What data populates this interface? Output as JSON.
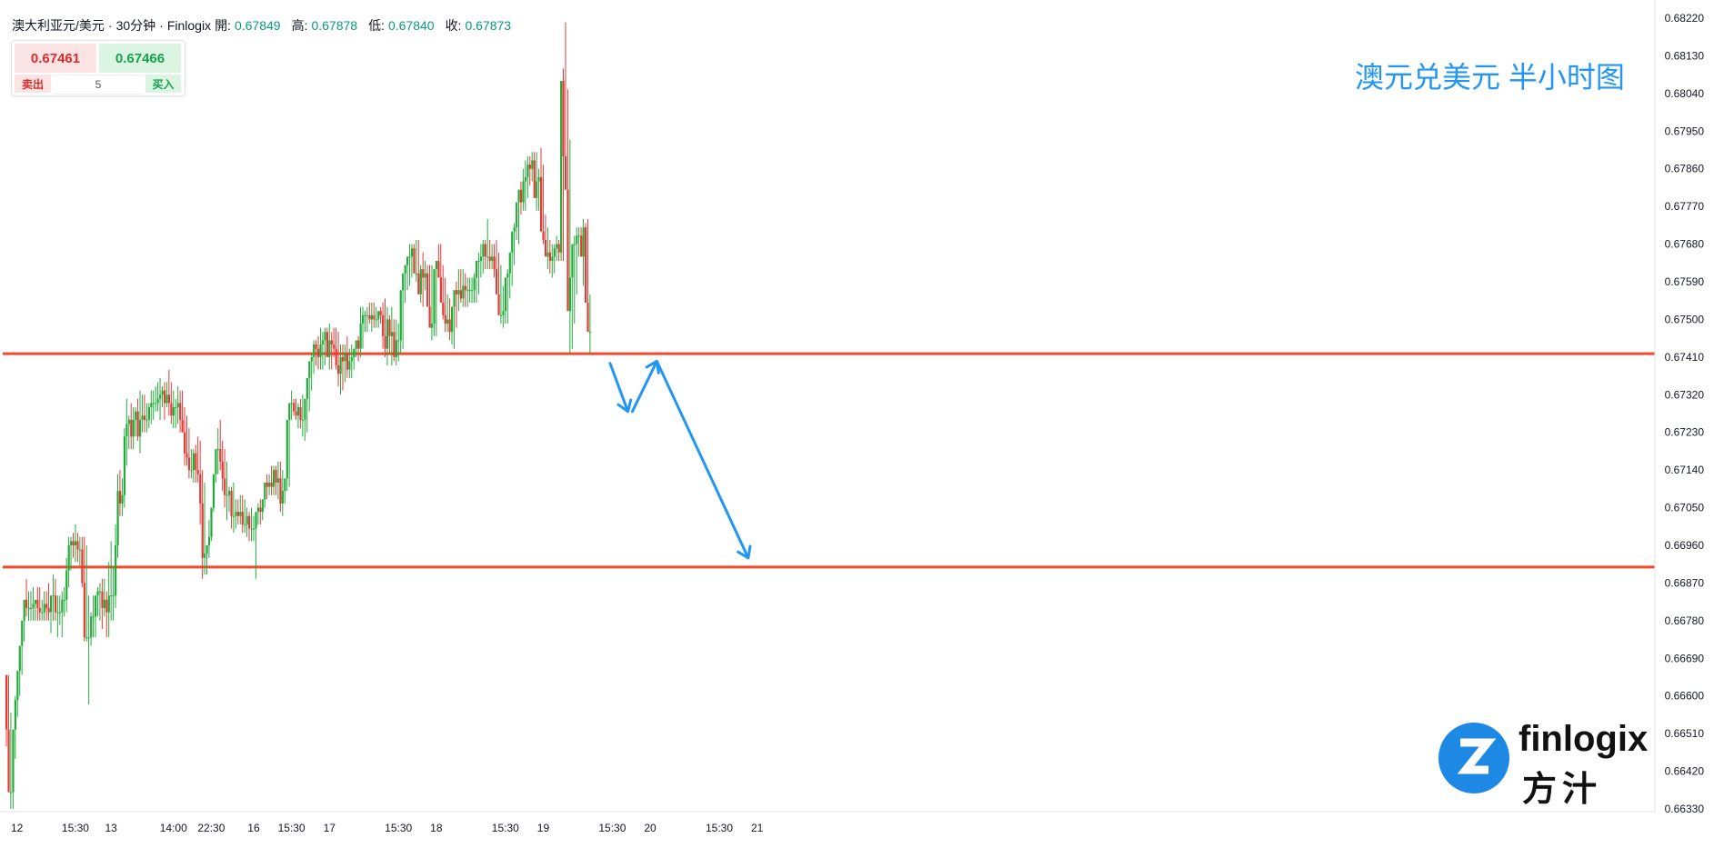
{
  "header": {
    "symbol": "澳大利亚元/美元",
    "sep1": "·",
    "interval": "30分钟",
    "sep2": "·",
    "source": "Finlogix",
    "open_label": "開:",
    "open_value": "0.67849",
    "high_label": "高:",
    "high_value": "0.67878",
    "low_label": "低:",
    "low_value": "0.67840",
    "close_label": "收:",
    "close_value": "0.67873"
  },
  "ticket": {
    "sell_price": "0.67461",
    "buy_price": "0.67466",
    "sell_label": "卖出",
    "buy_label": "买入",
    "quantity": "5"
  },
  "annotation": {
    "text": "澳元兑美元 半小时图"
  },
  "brand": {
    "logo_en_1": "fin",
    "logo_en_2": "logix",
    "logo_cn": "方汁"
  },
  "colors": {
    "up": "#22ab3a",
    "down": "#e53935",
    "level_line": "#f0492c",
    "arrow": "#2196f3",
    "brand": "#1e88e5"
  },
  "chart_data": {
    "type": "candlestick",
    "symbol": "澳大利亚元/美元",
    "interval": "30分钟",
    "ylim": [
      0.6629,
      0.6826
    ],
    "y_ticks": [
      "0.68220",
      "0.68130",
      "0.68040",
      "0.67950",
      "0.67860",
      "0.67770",
      "0.67680",
      "0.67590",
      "0.67500",
      "0.67410",
      "0.67320",
      "0.67230",
      "0.67140",
      "0.67050",
      "0.66960",
      "0.66870",
      "0.66780",
      "0.66690",
      "0.66600",
      "0.66510",
      "0.66420",
      "0.66330"
    ],
    "x_ticks": [
      {
        "label": "12",
        "index": 0
      },
      {
        "label": "15:30",
        "index": 31
      },
      {
        "label": "13",
        "index": 47
      },
      {
        "label": "14:00",
        "index": 75
      },
      {
        "label": "22:30",
        "index": 92
      },
      {
        "label": "16",
        "index": 111
      },
      {
        "label": "15:30",
        "index": 128
      },
      {
        "label": "17",
        "index": 145
      },
      {
        "label": "15:30",
        "index": 176
      },
      {
        "label": "18",
        "index": 193
      },
      {
        "label": "15:30",
        "index": 224
      },
      {
        "label": "19",
        "index": 241
      },
      {
        "label": "15:30",
        "index": 272
      },
      {
        "label": "20",
        "index": 289
      },
      {
        "label": "15:30",
        "index": 320
      },
      {
        "label": "21",
        "index": 337
      }
    ],
    "levels": [
      0.67418,
      0.66908
    ],
    "projection_path": [
      {
        "index": 271,
        "price": 0.67395
      },
      {
        "index": 279,
        "price": 0.6728
      },
      {
        "index": 281,
        "price": 0.6728
      },
      {
        "index": 292,
        "price": 0.674
      },
      {
        "index": 333,
        "price": 0.6693
      }
    ],
    "ohlc_open": [
      0.6665,
      0.6652,
      0.6637,
      0.6637,
      0.6652,
      0.6659,
      0.6666,
      0.6672,
      0.6678,
      0.6683,
      0.6681,
      0.6681,
      0.6681,
      0.6682,
      0.6683,
      0.6681,
      0.668,
      0.668,
      0.6682,
      0.6681,
      0.668,
      0.6684,
      0.6684,
      0.668,
      0.668,
      0.668,
      0.6683,
      0.6683,
      0.669,
      0.6696,
      0.6697,
      0.6696,
      0.6697,
      0.6695,
      0.6695,
      0.6687,
      0.6674,
      0.6674,
      0.6674,
      0.6679,
      0.6679,
      0.6684,
      0.6685,
      0.6685,
      0.6681,
      0.6683,
      0.668,
      0.6684,
      0.6684,
      0.6684,
      0.6696,
      0.6709,
      0.6706,
      0.6708,
      0.6722,
      0.6725,
      0.6726,
      0.6722,
      0.6726,
      0.6728,
      0.6722,
      0.6726,
      0.6727,
      0.6726,
      0.6726,
      0.6729,
      0.673,
      0.673,
      0.673,
      0.6731,
      0.6732,
      0.6733,
      0.673,
      0.6732,
      0.673,
      0.6727,
      0.6729,
      0.6729,
      0.673,
      0.6726,
      0.6723,
      0.6718,
      0.6717,
      0.6714,
      0.6714,
      0.6718,
      0.6714,
      0.6713,
      0.6706,
      0.6693,
      0.6694,
      0.6696,
      0.6698,
      0.6705,
      0.6713,
      0.6719,
      0.6719,
      0.6716,
      0.6712,
      0.6708,
      0.6708,
      0.6709,
      0.6703,
      0.6703,
      0.6704,
      0.6703,
      0.6704,
      0.6701,
      0.6701,
      0.6703,
      0.67,
      0.67,
      0.67,
      0.6704,
      0.6705,
      0.6704,
      0.6707,
      0.6711,
      0.671,
      0.6711,
      0.671,
      0.6714,
      0.6711,
      0.6712,
      0.6706,
      0.6709,
      0.6712,
      0.6726,
      0.673,
      0.673,
      0.6728,
      0.6727,
      0.6729,
      0.6726,
      0.6726,
      0.6731,
      0.6736,
      0.674,
      0.6741,
      0.6744,
      0.6743,
      0.6741,
      0.6744,
      0.6745,
      0.6747,
      0.6741,
      0.6745,
      0.6744,
      0.6743,
      0.6739,
      0.6737,
      0.6741,
      0.674,
      0.6742,
      0.6738,
      0.674,
      0.6741,
      0.6743,
      0.6745,
      0.6743,
      0.6749,
      0.6751,
      0.6751,
      0.6751,
      0.675,
      0.6751,
      0.675,
      0.675,
      0.6752,
      0.6751,
      0.6746,
      0.6743,
      0.675,
      0.6746,
      0.6747,
      0.6741,
      0.6745,
      0.6745,
      0.6757,
      0.6761,
      0.6763,
      0.6765,
      0.6765,
      0.6767,
      0.6761,
      0.6761,
      0.6756,
      0.6762,
      0.676,
      0.6761,
      0.6753,
      0.6748,
      0.6749,
      0.6762,
      0.6764,
      0.676,
      0.6754,
      0.6751,
      0.6749,
      0.675,
      0.6747,
      0.6753,
      0.6757,
      0.6756,
      0.6757,
      0.6755,
      0.6758,
      0.6757,
      0.6757,
      0.6757,
      0.6757,
      0.676,
      0.6764,
      0.6764,
      0.6765,
      0.6768,
      0.6765,
      0.6765,
      0.6764,
      0.6765,
      0.6762,
      0.6756,
      0.6751,
      0.6751,
      0.6752,
      0.676,
      0.6761,
      0.6766,
      0.6771,
      0.6772,
      0.6778,
      0.6781,
      0.6778,
      0.6783,
      0.6784,
      0.6787,
      0.6786,
      0.6788,
      0.6779,
      0.6783,
      0.6784,
      0.6771,
      0.6769,
      0.6765,
      0.6766,
      0.6764,
      0.6765,
      0.6767,
      0.6768,
      0.6766,
      0.6807,
      0.6789,
      0.6781,
      0.6752,
      0.676,
      0.6768,
      0.6768,
      0.677,
      0.677,
      0.6765,
      0.6772,
      0.6754,
      0.6747
    ],
    "ohlc_high": [
      0.6665,
      0.6665,
      0.6656,
      0.6645,
      0.666,
      0.6663,
      0.667,
      0.6676,
      0.6682,
      0.6688,
      0.6685,
      0.6685,
      0.6686,
      0.6683,
      0.6686,
      0.6686,
      0.6683,
      0.6685,
      0.6685,
      0.6687,
      0.6684,
      0.6689,
      0.6688,
      0.6684,
      0.6684,
      0.6685,
      0.6686,
      0.6693,
      0.6698,
      0.6698,
      0.6699,
      0.6701,
      0.6699,
      0.6698,
      0.6698,
      0.6698,
      0.6696,
      0.6684,
      0.668,
      0.6684,
      0.6683,
      0.6686,
      0.6687,
      0.6688,
      0.6688,
      0.6685,
      0.6692,
      0.6697,
      0.6691,
      0.6701,
      0.6713,
      0.6714,
      0.6712,
      0.6724,
      0.6731,
      0.6727,
      0.673,
      0.6729,
      0.6729,
      0.6731,
      0.6733,
      0.6732,
      0.6732,
      0.673,
      0.673,
      0.6733,
      0.6733,
      0.6734,
      0.6735,
      0.6736,
      0.6734,
      0.6735,
      0.6735,
      0.6738,
      0.6735,
      0.6733,
      0.6731,
      0.6734,
      0.6733,
      0.6733,
      0.6729,
      0.6727,
      0.6724,
      0.6719,
      0.6719,
      0.672,
      0.6722,
      0.6721,
      0.6714,
      0.6711,
      0.6696,
      0.6702,
      0.6703,
      0.6709,
      0.6715,
      0.6724,
      0.6726,
      0.6721,
      0.6719,
      0.6716,
      0.671,
      0.671,
      0.6711,
      0.6707,
      0.6707,
      0.6708,
      0.6708,
      0.6707,
      0.6705,
      0.6704,
      0.6705,
      0.6703,
      0.6703,
      0.6706,
      0.6707,
      0.6707,
      0.6711,
      0.6713,
      0.6713,
      0.6715,
      0.6715,
      0.6715,
      0.6716,
      0.6716,
      0.6714,
      0.6711,
      0.6712,
      0.6727,
      0.6733,
      0.6731,
      0.6731,
      0.673,
      0.6731,
      0.6732,
      0.673,
      0.6732,
      0.6736,
      0.6742,
      0.6745,
      0.6745,
      0.6746,
      0.6748,
      0.6747,
      0.6748,
      0.6748,
      0.6749,
      0.6747,
      0.6748,
      0.6748,
      0.6747,
      0.6744,
      0.6744,
      0.6744,
      0.6746,
      0.6743,
      0.6744,
      0.6743,
      0.6744,
      0.6746,
      0.6753,
      0.6753,
      0.6752,
      0.6753,
      0.6754,
      0.6754,
      0.6754,
      0.6753,
      0.6752,
      0.6753,
      0.6754,
      0.6755,
      0.6753,
      0.6751,
      0.6753,
      0.675,
      0.675,
      0.6749,
      0.675,
      0.6758,
      0.6762,
      0.6765,
      0.6768,
      0.6768,
      0.6768,
      0.6769,
      0.6769,
      0.6763,
      0.6766,
      0.6764,
      0.6763,
      0.6763,
      0.6763,
      0.6761,
      0.6763,
      0.6768,
      0.6768,
      0.6763,
      0.676,
      0.6756,
      0.6755,
      0.6753,
      0.6756,
      0.6759,
      0.6762,
      0.6762,
      0.6762,
      0.6761,
      0.676,
      0.676,
      0.676,
      0.6761,
      0.6761,
      0.6766,
      0.6768,
      0.6769,
      0.6769,
      0.6774,
      0.6769,
      0.6768,
      0.6768,
      0.6769,
      0.6766,
      0.6763,
      0.6758,
      0.6754,
      0.6762,
      0.6765,
      0.677,
      0.6773,
      0.6775,
      0.6781,
      0.6783,
      0.6786,
      0.6788,
      0.6789,
      0.6789,
      0.679,
      0.679,
      0.679,
      0.6786,
      0.6791,
      0.6787,
      0.6775,
      0.6772,
      0.6769,
      0.6768,
      0.6768,
      0.677,
      0.6769,
      0.6769,
      0.681,
      0.6821,
      0.6805,
      0.6793,
      0.6763,
      0.677,
      0.6772,
      0.6772,
      0.6772,
      0.6774,
      0.6773,
      0.6774,
      0.6756,
      0.6749
    ],
    "ohlc_low": [
      0.6648,
      0.6637,
      0.6633,
      0.6633,
      0.6645,
      0.6655,
      0.666,
      0.6665,
      0.6673,
      0.6679,
      0.6678,
      0.6678,
      0.6678,
      0.6678,
      0.6678,
      0.6678,
      0.6678,
      0.6678,
      0.6678,
      0.6678,
      0.6675,
      0.6678,
      0.6678,
      0.6674,
      0.6677,
      0.6674,
      0.6679,
      0.668,
      0.6686,
      0.669,
      0.6693,
      0.6692,
      0.6692,
      0.6691,
      0.6686,
      0.6673,
      0.6673,
      0.6658,
      0.6672,
      0.6674,
      0.6674,
      0.6679,
      0.6678,
      0.6676,
      0.6679,
      0.6674,
      0.6674,
      0.6678,
      0.6678,
      0.6681,
      0.6693,
      0.6703,
      0.6703,
      0.6705,
      0.6715,
      0.6719,
      0.6719,
      0.6719,
      0.6722,
      0.6721,
      0.6718,
      0.6723,
      0.6723,
      0.6723,
      0.6724,
      0.6725,
      0.6726,
      0.6728,
      0.6728,
      0.6726,
      0.6729,
      0.6726,
      0.6729,
      0.6727,
      0.6725,
      0.6724,
      0.6724,
      0.6725,
      0.6723,
      0.6723,
      0.6715,
      0.6715,
      0.6712,
      0.6712,
      0.6711,
      0.6711,
      0.6711,
      0.6701,
      0.6688,
      0.6689,
      0.6689,
      0.6693,
      0.6697,
      0.6704,
      0.6711,
      0.6713,
      0.6714,
      0.6709,
      0.6705,
      0.6702,
      0.6704,
      0.67,
      0.6699,
      0.67,
      0.6701,
      0.6701,
      0.6699,
      0.6699,
      0.6698,
      0.6697,
      0.6697,
      0.6697,
      0.6688,
      0.6701,
      0.6701,
      0.6702,
      0.6705,
      0.6707,
      0.6708,
      0.6708,
      0.6708,
      0.6708,
      0.6707,
      0.6704,
      0.6703,
      0.6706,
      0.6709,
      0.671,
      0.6726,
      0.6727,
      0.6726,
      0.6724,
      0.6724,
      0.6722,
      0.6721,
      0.6723,
      0.6728,
      0.6733,
      0.6737,
      0.6739,
      0.6738,
      0.6738,
      0.6738,
      0.6739,
      0.6741,
      0.6738,
      0.6738,
      0.6741,
      0.6738,
      0.6734,
      0.6732,
      0.6733,
      0.6735,
      0.6736,
      0.6736,
      0.6736,
      0.6738,
      0.6741,
      0.674,
      0.6741,
      0.6743,
      0.6747,
      0.6747,
      0.6749,
      0.6747,
      0.6748,
      0.6748,
      0.6748,
      0.6749,
      0.6743,
      0.6741,
      0.6739,
      0.6742,
      0.6739,
      0.674,
      0.6739,
      0.674,
      0.6742,
      0.6743,
      0.6754,
      0.6757,
      0.6758,
      0.676,
      0.6762,
      0.6759,
      0.6757,
      0.6754,
      0.6753,
      0.6757,
      0.6758,
      0.6751,
      0.6745,
      0.6746,
      0.6746,
      0.676,
      0.6758,
      0.675,
      0.6747,
      0.6747,
      0.6745,
      0.6744,
      0.6743,
      0.6748,
      0.6752,
      0.6754,
      0.6753,
      0.6753,
      0.6753,
      0.6754,
      0.6754,
      0.6754,
      0.6754,
      0.6756,
      0.676,
      0.6761,
      0.6762,
      0.6762,
      0.6762,
      0.6762,
      0.676,
      0.676,
      0.6754,
      0.6749,
      0.6748,
      0.6749,
      0.6749,
      0.6755,
      0.6758,
      0.6763,
      0.6769,
      0.6768,
      0.6775,
      0.6776,
      0.6776,
      0.6779,
      0.6782,
      0.6783,
      0.6784,
      0.6776,
      0.6776,
      0.6778,
      0.6768,
      0.6766,
      0.6762,
      0.6761,
      0.676,
      0.6761,
      0.6764,
      0.6764,
      0.6764,
      0.6764,
      0.6785,
      0.6777,
      0.6742,
      0.6743,
      0.6749,
      0.6756,
      0.6765,
      0.6765,
      0.6758,
      0.6756,
      0.6749,
      0.6742,
      0.6744
    ],
    "ohlc_close": [
      0.6652,
      0.6637,
      0.6637,
      0.6652,
      0.6659,
      0.6666,
      0.6672,
      0.6678,
      0.6683,
      0.6681,
      0.6681,
      0.6681,
      0.6682,
      0.6683,
      0.6681,
      0.668,
      0.668,
      0.6682,
      0.6681,
      0.668,
      0.6684,
      0.6684,
      0.668,
      0.668,
      0.668,
      0.6683,
      0.6683,
      0.669,
      0.6696,
      0.6697,
      0.6696,
      0.6697,
      0.6695,
      0.6695,
      0.6687,
      0.6674,
      0.6674,
      0.6674,
      0.6679,
      0.6679,
      0.6684,
      0.6685,
      0.6685,
      0.6681,
      0.6683,
      0.668,
      0.6684,
      0.6684,
      0.6684,
      0.6696,
      0.6709,
      0.6706,
      0.6708,
      0.6722,
      0.6725,
      0.6726,
      0.6722,
      0.6726,
      0.6728,
      0.6722,
      0.6726,
      0.6727,
      0.6726,
      0.6726,
      0.6729,
      0.673,
      0.673,
      0.673,
      0.6731,
      0.6732,
      0.6733,
      0.673,
      0.6732,
      0.673,
      0.6727,
      0.6729,
      0.6729,
      0.673,
      0.6726,
      0.6723,
      0.6718,
      0.6717,
      0.6714,
      0.6714,
      0.6718,
      0.6714,
      0.6713,
      0.6706,
      0.6693,
      0.6694,
      0.6696,
      0.6698,
      0.6705,
      0.6713,
      0.6719,
      0.6719,
      0.6716,
      0.6712,
      0.6708,
      0.6708,
      0.6709,
      0.6703,
      0.6703,
      0.6704,
      0.6703,
      0.6704,
      0.6701,
      0.6701,
      0.6703,
      0.67,
      0.67,
      0.67,
      0.6704,
      0.6705,
      0.6704,
      0.6707,
      0.6711,
      0.671,
      0.6711,
      0.671,
      0.6714,
      0.6711,
      0.6712,
      0.6706,
      0.6709,
      0.6712,
      0.6726,
      0.673,
      0.673,
      0.6728,
      0.6727,
      0.6729,
      0.6726,
      0.6726,
      0.6731,
      0.6736,
      0.674,
      0.6741,
      0.6744,
      0.6743,
      0.6741,
      0.6744,
      0.6745,
      0.6747,
      0.6741,
      0.6745,
      0.6744,
      0.6743,
      0.6739,
      0.6737,
      0.6741,
      0.674,
      0.6742,
      0.6738,
      0.674,
      0.6741,
      0.6743,
      0.6745,
      0.6743,
      0.6749,
      0.6751,
      0.6751,
      0.6751,
      0.675,
      0.6751,
      0.675,
      0.675,
      0.6752,
      0.6751,
      0.6746,
      0.6743,
      0.675,
      0.6746,
      0.6747,
      0.6741,
      0.6745,
      0.6745,
      0.6757,
      0.6761,
      0.6763,
      0.6765,
      0.6765,
      0.6767,
      0.6761,
      0.6761,
      0.6756,
      0.6762,
      0.676,
      0.6761,
      0.6753,
      0.6748,
      0.6749,
      0.6762,
      0.6764,
      0.676,
      0.6754,
      0.6751,
      0.6749,
      0.675,
      0.6747,
      0.6753,
      0.6757,
      0.6756,
      0.6757,
      0.6755,
      0.6758,
      0.6757,
      0.6757,
      0.6757,
      0.6757,
      0.676,
      0.6764,
      0.6764,
      0.6765,
      0.6768,
      0.6765,
      0.6765,
      0.6764,
      0.6765,
      0.6762,
      0.6756,
      0.6751,
      0.6751,
      0.6752,
      0.676,
      0.6761,
      0.6766,
      0.6771,
      0.6772,
      0.6778,
      0.6781,
      0.6778,
      0.6783,
      0.6784,
      0.6787,
      0.6786,
      0.6788,
      0.6779,
      0.6783,
      0.6784,
      0.6771,
      0.6769,
      0.6765,
      0.6766,
      0.6764,
      0.6765,
      0.6767,
      0.6768,
      0.6766,
      0.6807,
      0.6789,
      0.6781,
      0.6752,
      0.676,
      0.6768,
      0.6768,
      0.677,
      0.677,
      0.6765,
      0.6772,
      0.6754,
      0.6747,
      0.6747
    ]
  }
}
